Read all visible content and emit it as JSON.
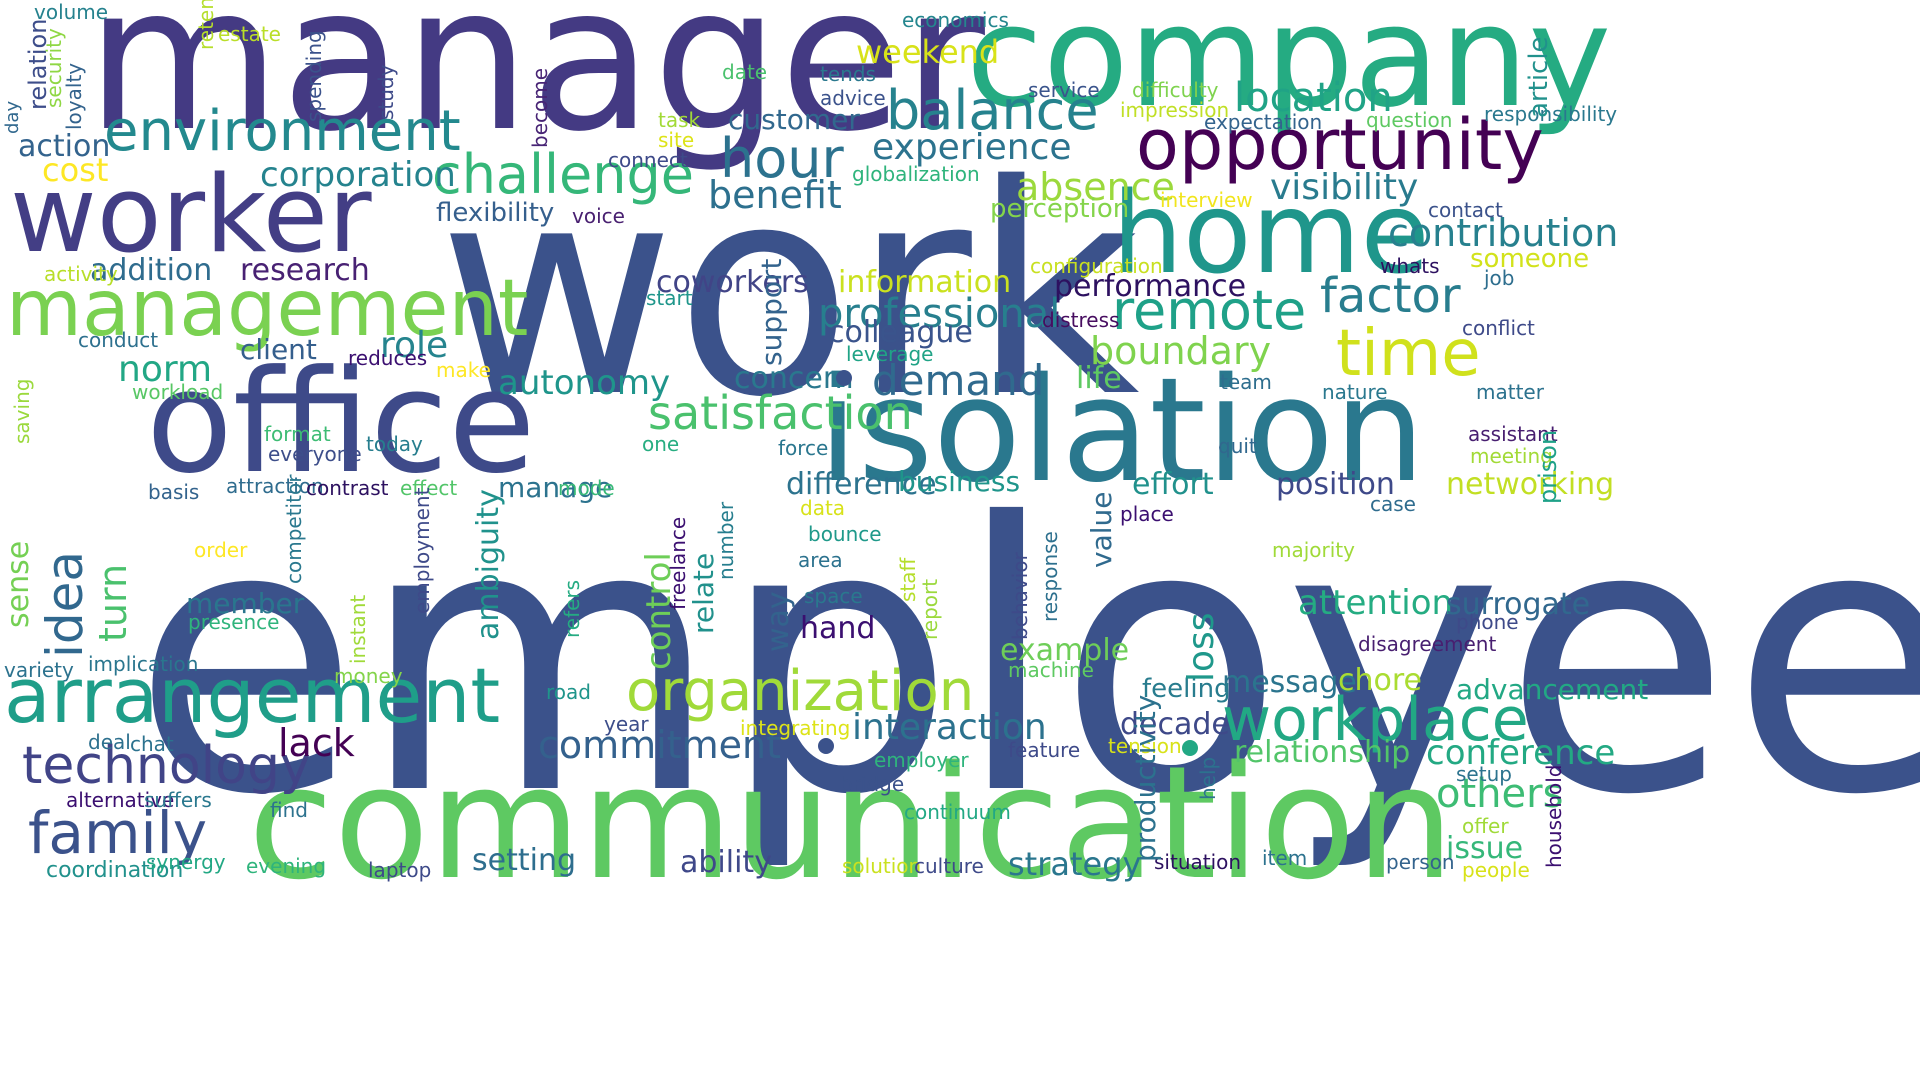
{
  "words": [
    {
      "text": "employee",
      "color": "#3b528b"
    },
    {
      "text": "work",
      "color": "#3b528b"
    },
    {
      "text": "manager",
      "color": "#443a83"
    },
    {
      "text": "communication",
      "color": "#5ec962"
    },
    {
      "text": "company",
      "color": "#25ab82"
    },
    {
      "text": "isolation",
      "color": "#2a788e"
    },
    {
      "text": "office",
      "color": "#3e4a89"
    },
    {
      "text": "home",
      "color": "#1f968b"
    },
    {
      "text": "worker",
      "color": "#433e85"
    },
    {
      "text": "opportunity",
      "color": "#440154"
    },
    {
      "text": "management",
      "color": "#7ad151"
    },
    {
      "text": "arrangement",
      "color": "#1f9e89"
    },
    {
      "text": "environment",
      "color": "#23898e"
    },
    {
      "text": "workplace",
      "color": "#22a884"
    },
    {
      "text": "organization",
      "color": "#a0da39"
    },
    {
      "text": "time",
      "color": "#d0e11c"
    },
    {
      "text": "remote",
      "color": "#1fa188"
    },
    {
      "text": "balance",
      "color": "#26828e"
    },
    {
      "text": "hour",
      "color": "#2c728e"
    },
    {
      "text": "challenge",
      "color": "#35b779"
    },
    {
      "text": "family",
      "color": "#3b528b"
    },
    {
      "text": "technology",
      "color": "#31688e"
    },
    {
      "text": "factor",
      "color": "#414487"
    },
    {
      "text": "location",
      "color": "#287d8e"
    },
    {
      "text": "visibility",
      "color": "#20a386"
    },
    {
      "text": "satisfaction",
      "color": "#297b8e"
    },
    {
      "text": "demand",
      "color": "#4ac16d"
    },
    {
      "text": "benefit",
      "color": "#306a8e"
    },
    {
      "text": "experience",
      "color": "#2d708e"
    },
    {
      "text": "contribution",
      "color": "#2c738e"
    },
    {
      "text": "boundary",
      "color": "#27808e"
    },
    {
      "text": "corporation",
      "color": "#7fd34e"
    },
    {
      "text": "addition",
      "color": "#25838e"
    },
    {
      "text": "research",
      "color": "#2f6c8e"
    },
    {
      "text": "professional",
      "color": "#482173"
    },
    {
      "text": "role",
      "color": "#277f8e"
    },
    {
      "text": "norm",
      "color": "#25848e"
    },
    {
      "text": "action",
      "color": "#22a785"
    },
    {
      "text": "cost",
      "color": "#33638d"
    },
    {
      "text": "absence",
      "color": "#fde725"
    },
    {
      "text": "lack",
      "color": "#9bd93c"
    },
    {
      "text": "commitment",
      "color": "#440154"
    },
    {
      "text": "interaction",
      "color": "#34618d"
    },
    {
      "text": "autonomy",
      "color": "#2c728e"
    },
    {
      "text": "customer",
      "color": "#1f958b"
    },
    {
      "text": "flexibility",
      "color": "#4ac16d"
    },
    {
      "text": "perception",
      "color": "#75d054"
    },
    {
      "text": "performance",
      "color": "#6ece58"
    },
    {
      "text": "information",
      "color": "#21918c"
    },
    {
      "text": "coworkers",
      "color": "#1f988b"
    },
    {
      "text": "colleague",
      "color": "#33638d"
    },
    {
      "text": "client",
      "color": "#20928c"
    },
    {
      "text": "life",
      "color": "#3dbc74"
    },
    {
      "text": "concern",
      "color": "#23a983"
    },
    {
      "text": "difference",
      "color": "#2e6e8e"
    },
    {
      "text": "business",
      "color": "#3f4889"
    },
    {
      "text": "effort",
      "color": "#2a768e"
    },
    {
      "text": "position",
      "color": "#35b779"
    },
    {
      "text": "networking",
      "color": "#31688e"
    },
    {
      "text": "attention",
      "color": "#355f8d"
    },
    {
      "text": "surrogate",
      "color": "#84d44b"
    },
    {
      "text": "advancement",
      "color": "#2d1160"
    },
    {
      "text": "member",
      "color": "#cae11f"
    },
    {
      "text": "hand",
      "color": "#414487"
    },
    {
      "text": "manage",
      "color": "#3a548c"
    },
    {
      "text": "example",
      "color": "#355f8d"
    },
    {
      "text": "message",
      "color": "#5ec962"
    },
    {
      "text": "chore",
      "color": "#2a788e"
    },
    {
      "text": "decade",
      "color": "#2c738e"
    },
    {
      "text": "relationship",
      "color": "#1f958b"
    },
    {
      "text": "feeling",
      "color": "#21918c"
    },
    {
      "text": "conference",
      "color": "#3e4989"
    },
    {
      "text": "others",
      "color": "#c2df23"
    },
    {
      "text": "issue",
      "color": "#25ac82"
    },
    {
      "text": "setting",
      "color": "#31688e"
    },
    {
      "text": "ability",
      "color": "#22a884"
    },
    {
      "text": "strategy",
      "color": "#2a768e"
    },
    {
      "text": "idea",
      "color": "#3b0f70"
    },
    {
      "text": "turn",
      "color": "#2c738e"
    },
    {
      "text": "sense",
      "color": "#6ece58"
    },
    {
      "text": "control",
      "color": "#2b758e"
    },
    {
      "text": "relate",
      "color": "#aadc32"
    },
    {
      "text": "loss",
      "color": "#3e4989"
    },
    {
      "text": "volume",
      "color": "#52c569"
    },
    {
      "text": "way",
      "color": "#287c8e"
    },
    {
      "text": "estate",
      "color": "#306a8e"
    },
    {
      "text": "ambiguity",
      "color": "#33638d"
    },
    {
      "text": "value",
      "color": "#2c728e"
    },
    {
      "text": "support",
      "color": "#21918c"
    },
    {
      "text": "productivity",
      "color": "#1fa188"
    },
    {
      "text": "economics",
      "color": "#25ab82"
    },
    {
      "text": "weekend",
      "color": "#26828e"
    },
    {
      "text": "date",
      "color": "#b5de2b"
    },
    {
      "text": "tends",
      "color": "#bade28"
    },
    {
      "text": "advice",
      "color": "#3d4d8a"
    },
    {
      "text": "service",
      "color": "#8fd744"
    },
    {
      "text": "difficulty",
      "color": "#33638d"
    },
    {
      "text": "impression",
      "color": "#31688e"
    },
    {
      "text": "expectation",
      "color": "#3b528b"
    },
    {
      "text": "question",
      "color": "#3e4a89"
    },
    {
      "text": "responsibility",
      "color": "#482475"
    },
    {
      "text": "task",
      "color": "#24868e"
    },
    {
      "text": "site",
      "color": "#d8e219"
    },
    {
      "text": "connect",
      "color": "#4ac16d"
    },
    {
      "text": "globalization",
      "color": "#2a788e"
    },
    {
      "text": "voice",
      "color": "#3b528b"
    },
    {
      "text": "interview",
      "color": "#3a548c"
    },
    {
      "text": "contact",
      "color": "#7fd34e"
    },
    {
      "text": "activity",
      "color": "#c0df25"
    },
    {
      "text": "configuration",
      "color": "#33638d"
    },
    {
      "text": "whats",
      "color": "#5ec962"
    },
    {
      "text": "someone",
      "color": "#2a788e"
    },
    {
      "text": "job",
      "color": "#a2da37"
    },
    {
      "text": "start",
      "color": "#dde318"
    },
    {
      "text": "distress",
      "color": "#3e4a89"
    },
    {
      "text": "conflict",
      "color": "#2fb47c"
    },
    {
      "text": "conduct",
      "color": "#481f70"
    },
    {
      "text": "reduces",
      "color": "#f1e51d"
    },
    {
      "text": "leverage",
      "color": "#3b528b"
    },
    {
      "text": "make",
      "color": "#b8de29"
    },
    {
      "text": "workload",
      "color": "#c8e020"
    },
    {
      "text": "article",
      "color": "#2d1160"
    },
    {
      "text": "team",
      "color": "#d2e21b"
    },
    {
      "text": "nature",
      "color": "#2e6e8e"
    },
    {
      "text": "matter",
      "color": "#1f968b"
    },
    {
      "text": "format",
      "color": "#470d60"
    },
    {
      "text": "today",
      "color": "#3e4a89"
    },
    {
      "text": "everyone",
      "color": "#2d708e"
    },
    {
      "text": "one",
      "color": "#3b0f70"
    },
    {
      "text": "force",
      "color": "#20a386"
    },
    {
      "text": "quit",
      "color": "#fde725"
    },
    {
      "text": "assistant",
      "color": "#58c765"
    },
    {
      "text": "meeting",
      "color": "#9bd93c"
    },
    {
      "text": "basis",
      "color": "#2e6e8e"
    },
    {
      "text": "attraction",
      "color": "#2a788e"
    },
    {
      "text": "contrast",
      "color": "#2c728e"
    },
    {
      "text": "effect",
      "color": "#3dbc74"
    },
    {
      "text": "mode",
      "color": "#277e8e"
    },
    {
      "text": "data",
      "color": "#3d4e8a"
    },
    {
      "text": "place",
      "color": "#27ad81"
    },
    {
      "text": "case",
      "color": "#2a768e"
    },
    {
      "text": "bounce",
      "color": "#31688e"
    },
    {
      "text": "order",
      "color": "#481f70"
    },
    {
      "text": "prison",
      "color": "#a2da37"
    },
    {
      "text": "area",
      "color": "#33638d"
    },
    {
      "text": "refers",
      "color": "#2f6c8e"
    },
    {
      "text": "relation",
      "color": "#2d1160"
    },
    {
      "text": "security",
      "color": "#52c569"
    },
    {
      "text": "majority",
      "color": "#38b977"
    },
    {
      "text": "loyalty",
      "color": "#d8e219"
    },
    {
      "text": "day",
      "color": "#3b0f70"
    },
    {
      "text": "spending",
      "color": "#2f6c8e"
    },
    {
      "text": "space",
      "color": "#1f998a"
    },
    {
      "text": "study",
      "color": "#fde725"
    },
    {
      "text": "presence",
      "color": "#2a788e"
    },
    {
      "text": "phone",
      "color": "#2c728e"
    },
    {
      "text": "variety",
      "color": "#b5de2b"
    },
    {
      "text": "implication",
      "color": "#9bd93c"
    },
    {
      "text": "disagreement",
      "color": "#3e4a89"
    },
    {
      "text": "money",
      "color": "#a0da39"
    },
    {
      "text": "machine",
      "color": "#3b0f70"
    },
    {
      "text": "road",
      "color": "#277e8e"
    },
    {
      "text": "year",
      "color": "#3e4a89"
    },
    {
      "text": "integrating",
      "color": "#a0da39"
    },
    {
      "text": "deal",
      "color": "#2a788e"
    },
    {
      "text": "chat",
      "color": "#2d708e"
    },
    {
      "text": "employer",
      "color": "#2fb47c"
    },
    {
      "text": "feature",
      "color": "#3e4a89"
    },
    {
      "text": "tension",
      "color": "#2c728e"
    },
    {
      "text": "become",
      "color": "#2a768e"
    },
    {
      "text": "setup",
      "color": "#481f70"
    },
    {
      "text": "alternative",
      "color": "#84d44b"
    },
    {
      "text": "suffers",
      "color": "#5ec962"
    },
    {
      "text": "bridge",
      "color": "#1f958b"
    },
    {
      "text": "find",
      "color": "#3d4e8a"
    },
    {
      "text": "continuum",
      "color": "#dde318"
    },
    {
      "text": "offer",
      "color": "#2d708e"
    },
    {
      "text": "retention",
      "color": "#2c728e"
    },
    {
      "text": "coordination",
      "color": "#2fb47c"
    },
    {
      "text": "synergy",
      "color": "#3e4a89"
    },
    {
      "text": "evening",
      "color": "#d8e219"
    },
    {
      "text": "laptop",
      "color": "#2c728e"
    },
    {
      "text": "solution",
      "color": "#2c738e"
    },
    {
      "text": "culture",
      "color": "#3b0f70"
    },
    {
      "text": "situation",
      "color": "#2a788e"
    },
    {
      "text": "item",
      "color": "#3b528b"
    },
    {
      "text": "person",
      "color": "#2c728e"
    },
    {
      "text": "people",
      "color": "#22a884"
    },
    {
      "text": "saving",
      "color": "#a0da39"
    },
    {
      "text": "competitor",
      "color": "#3b0f70"
    },
    {
      "text": "staff",
      "color": "#21918c"
    },
    {
      "text": "report",
      "color": "#22a884"
    },
    {
      "text": "behavior",
      "color": "#2fb47c"
    },
    {
      "text": "freelance",
      "color": "#3e4a89"
    },
    {
      "text": "number",
      "color": "#cae11f"
    },
    {
      "text": "employment",
      "color": "#3e4a89"
    },
    {
      "text": "instant",
      "color": "#2d1160"
    },
    {
      "text": "response",
      "color": "#2c728e"
    },
    {
      "text": "help",
      "color": "#33638d"
    },
    {
      "text": "household",
      "color": "#d8e219"
    }
  ]
}
